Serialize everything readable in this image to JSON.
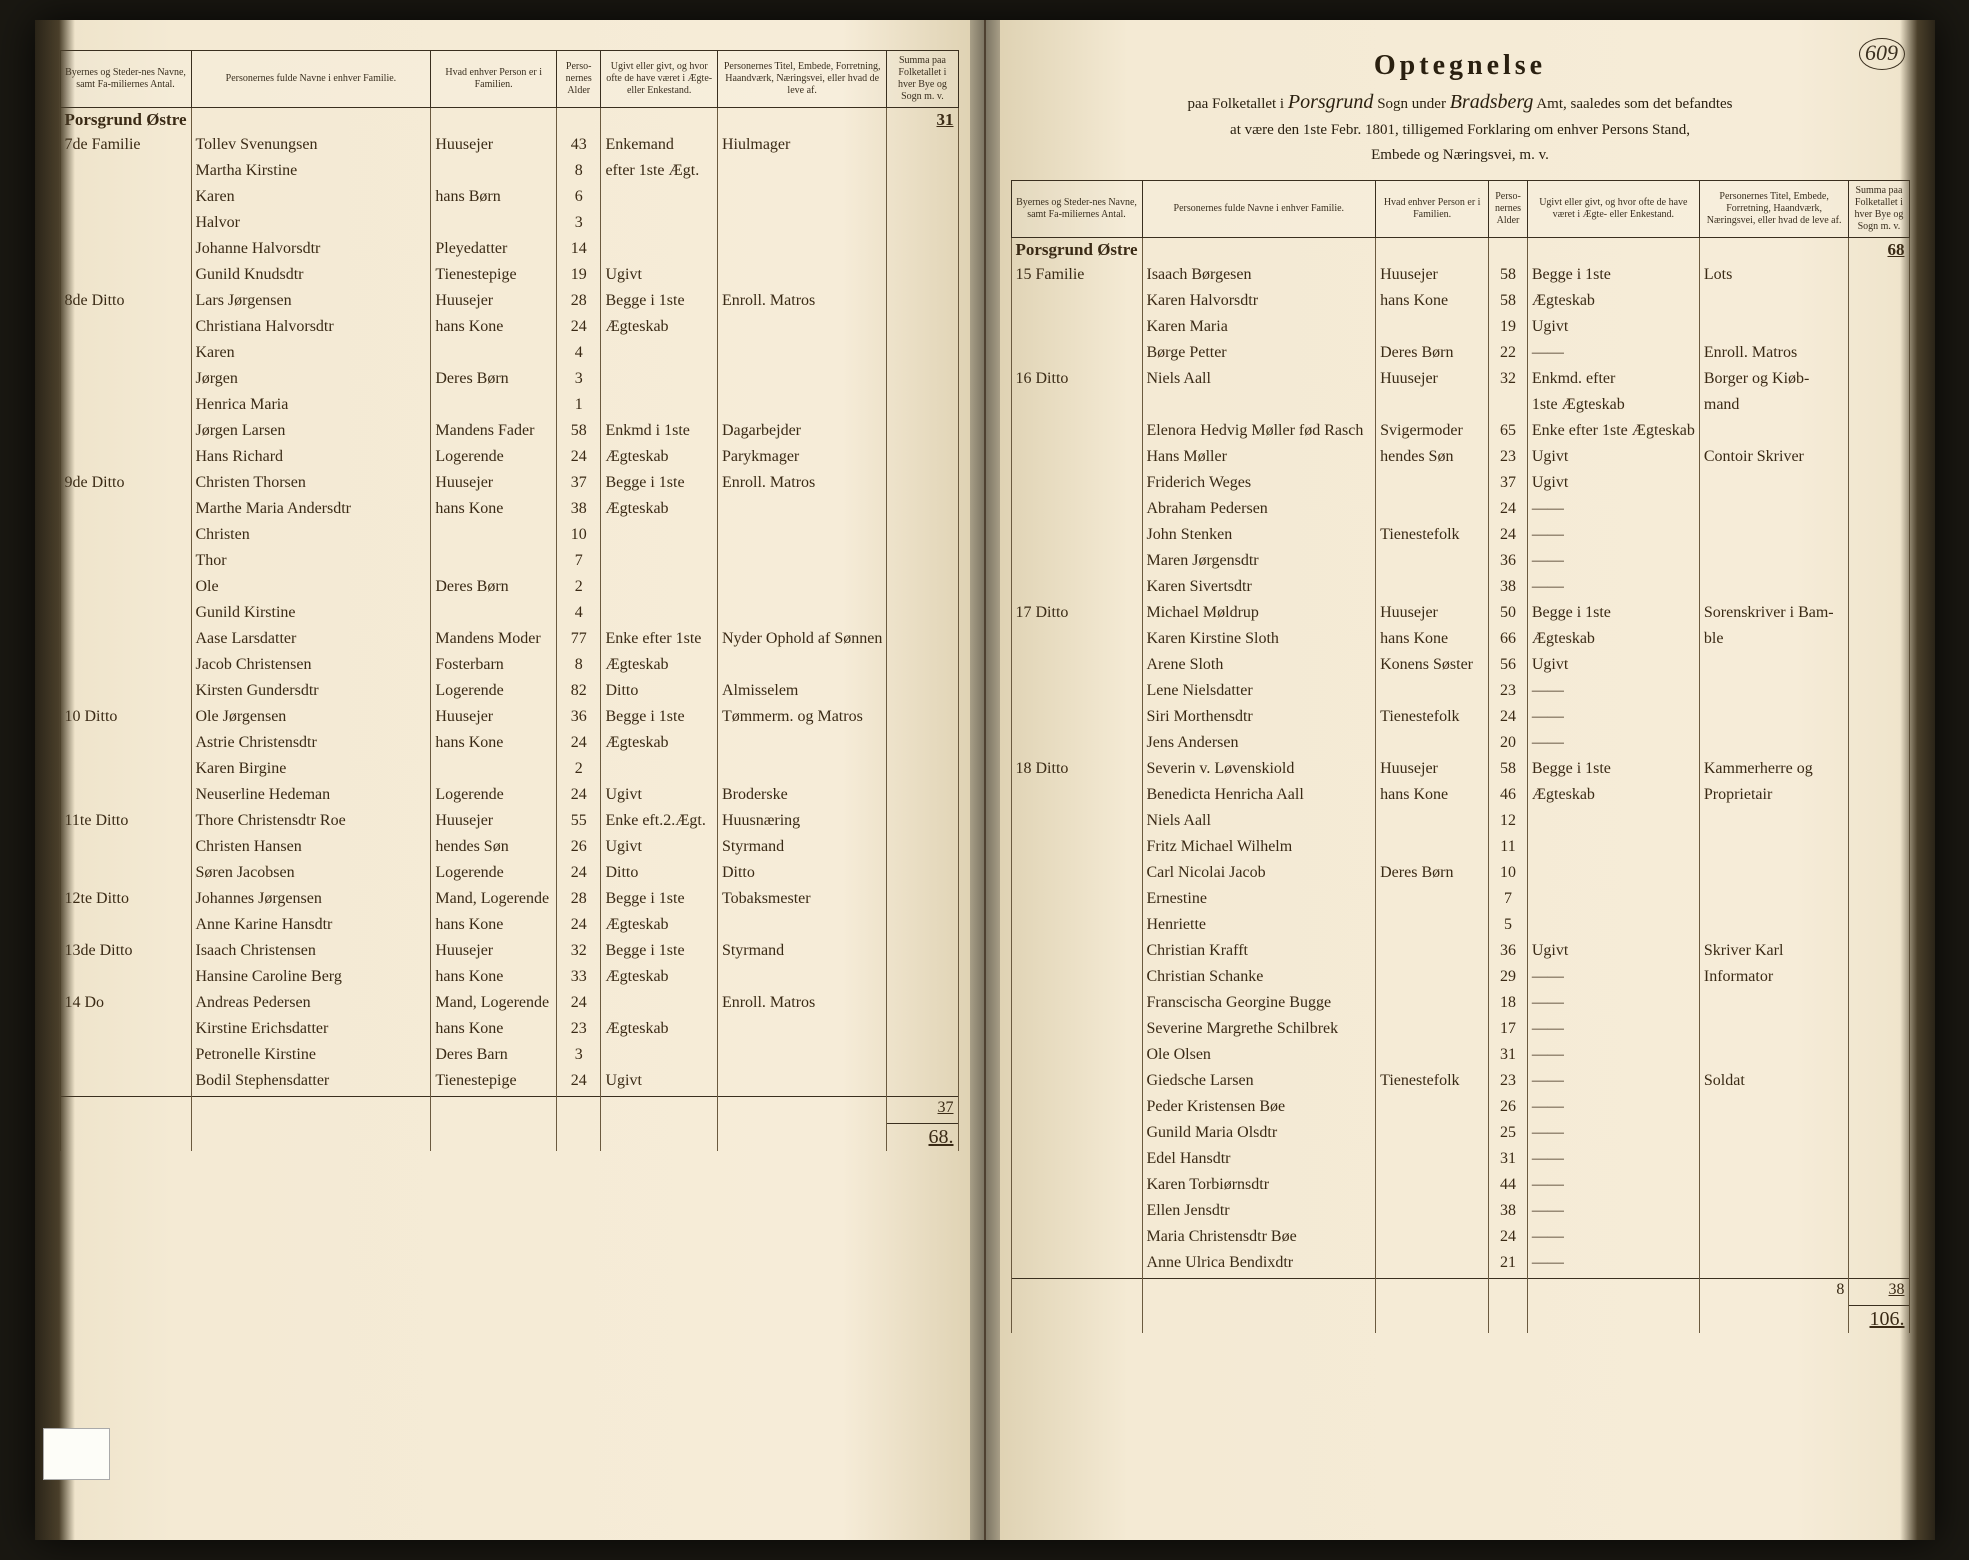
{
  "page_number": "609",
  "right_header": {
    "title": "Optegnelse",
    "line1_a": "paa Folketallet i",
    "line1_script1": "Porsgrund",
    "line1_b": "Sogn under",
    "line1_script2": "Bradsberg",
    "line1_c": "Amt, saaledes som det befandtes",
    "line2": "at være den 1ste Febr. 1801, tilligemed Forklaring om enhver Persons Stand,",
    "line3": "Embede og Næringsvei, m. v."
  },
  "columns": {
    "c1": "Byernes og Steder-nes Navne, samt Fa-miliernes Antal.",
    "c2": "Personernes fulde Navne i enhver Familie.",
    "c3": "Hvad enhver Person er i Familien.",
    "c4": "Perso-nernes Alder",
    "c5": "Ugivt eller givt, og hvor ofte de have været i Ægte- eller Enkestand.",
    "c6": "Personernes Titel, Embede, Forretning, Haandværk, Næringsvei, eller hvad de leve af.",
    "c7": "Summa paa Folketallet i hver Bye og Sogn m. v."
  },
  "left": {
    "section": "Porsgrund Østre",
    "carry": "31",
    "rows": [
      {
        "loc": "7de Familie",
        "name": "Tollev Svenungsen",
        "rel": "Huusejer",
        "age": "43",
        "mar": "Enkemand",
        "occ": "Hiulmager"
      },
      {
        "loc": "",
        "name": "Martha Kirstine",
        "rel": "",
        "age": "8",
        "mar": "efter 1ste Ægt.",
        "occ": ""
      },
      {
        "loc": "",
        "name": "Karen",
        "rel": "hans Børn",
        "age": "6",
        "mar": "",
        "occ": ""
      },
      {
        "loc": "",
        "name": "Halvor",
        "rel": "",
        "age": "3",
        "mar": "",
        "occ": ""
      },
      {
        "loc": "",
        "name": "Johanne Halvorsdtr",
        "rel": "Pleyedatter",
        "age": "14",
        "mar": "",
        "occ": ""
      },
      {
        "loc": "",
        "name": "Gunild Knudsdtr",
        "rel": "Tienestepige",
        "age": "19",
        "mar": "Ugivt",
        "occ": ""
      },
      {
        "loc": "8de Ditto",
        "name": "Lars Jørgensen",
        "rel": "Huusejer",
        "age": "28",
        "mar": "Begge i 1ste",
        "occ": "Enroll. Matros"
      },
      {
        "loc": "",
        "name": "Christiana Halvorsdtr",
        "rel": "hans Kone",
        "age": "24",
        "mar": "Ægteskab",
        "occ": ""
      },
      {
        "loc": "",
        "name": "Karen",
        "rel": "",
        "age": "4",
        "mar": "",
        "occ": ""
      },
      {
        "loc": "",
        "name": "Jørgen",
        "rel": "Deres Børn",
        "age": "3",
        "mar": "",
        "occ": ""
      },
      {
        "loc": "",
        "name": "Henrica Maria",
        "rel": "",
        "age": "1",
        "mar": "",
        "occ": ""
      },
      {
        "loc": "",
        "name": "Jørgen Larsen",
        "rel": "Mandens Fader",
        "age": "58",
        "mar": "Enkmd i 1ste",
        "occ": "Dagarbejder"
      },
      {
        "loc": "",
        "name": "Hans Richard",
        "rel": "Logerende",
        "age": "24",
        "mar": "Ægteskab",
        "occ": "Parykmager"
      },
      {
        "loc": "9de Ditto",
        "name": "Christen Thorsen",
        "rel": "Huusejer",
        "age": "37",
        "mar": "Begge i 1ste",
        "occ": "Enroll. Matros"
      },
      {
        "loc": "",
        "name": "Marthe Maria Andersdtr",
        "rel": "hans Kone",
        "age": "38",
        "mar": "Ægteskab",
        "occ": ""
      },
      {
        "loc": "",
        "name": "Christen",
        "rel": "",
        "age": "10",
        "mar": "",
        "occ": ""
      },
      {
        "loc": "",
        "name": "Thor",
        "rel": "",
        "age": "7",
        "mar": "",
        "occ": ""
      },
      {
        "loc": "",
        "name": "Ole",
        "rel": "Deres Børn",
        "age": "2",
        "mar": "",
        "occ": ""
      },
      {
        "loc": "",
        "name": "Gunild Kirstine",
        "rel": "",
        "age": "4",
        "mar": "",
        "occ": ""
      },
      {
        "loc": "",
        "name": "Aase Larsdatter",
        "rel": "Mandens Moder",
        "age": "77",
        "mar": "Enke efter 1ste",
        "occ": "Nyder Ophold af Sønnen"
      },
      {
        "loc": "",
        "name": "Jacob Christensen",
        "rel": "Fosterbarn",
        "age": "8",
        "mar": "Ægteskab",
        "occ": ""
      },
      {
        "loc": "",
        "name": "Kirsten Gundersdtr",
        "rel": "Logerende",
        "age": "82",
        "mar": "Ditto",
        "occ": "Almisselem"
      },
      {
        "loc": "10 Ditto",
        "name": "Ole Jørgensen",
        "rel": "Huusejer",
        "age": "36",
        "mar": "Begge i 1ste",
        "occ": "Tømmerm. og Matros"
      },
      {
        "loc": "",
        "name": "Astrie Christensdtr",
        "rel": "hans Kone",
        "age": "24",
        "mar": "Ægteskab",
        "occ": ""
      },
      {
        "loc": "",
        "name": "Karen Birgine",
        "rel": "",
        "age": "2",
        "mar": "",
        "occ": ""
      },
      {
        "loc": "",
        "name": "Neuserline Hedeman",
        "rel": "Logerende",
        "age": "24",
        "mar": "Ugivt",
        "occ": "Broderske"
      },
      {
        "loc": "11te Ditto",
        "name": "Thore Christensdtr Roe",
        "rel": "Huusejer",
        "age": "55",
        "mar": "Enke eft.2.Ægt.",
        "occ": "Huusnæring"
      },
      {
        "loc": "",
        "name": "Christen Hansen",
        "rel": "hendes Søn",
        "age": "26",
        "mar": "Ugivt",
        "occ": "Styrmand"
      },
      {
        "loc": "",
        "name": "Søren Jacobsen",
        "rel": "Logerende",
        "age": "24",
        "mar": "Ditto",
        "occ": "Ditto"
      },
      {
        "loc": "12te Ditto",
        "name": "Johannes Jørgensen",
        "rel": "Mand, Logerende",
        "age": "28",
        "mar": "Begge i 1ste",
        "occ": "Tobaksmester"
      },
      {
        "loc": "",
        "name": "Anne Karine Hansdtr",
        "rel": "hans Kone",
        "age": "24",
        "mar": "Ægteskab",
        "occ": ""
      },
      {
        "loc": "13de Ditto",
        "name": "Isaach Christensen",
        "rel": "Huusejer",
        "age": "32",
        "mar": "Begge i 1ste",
        "occ": "Styrmand"
      },
      {
        "loc": "",
        "name": "Hansine Caroline Berg",
        "rel": "hans Kone",
        "age": "33",
        "mar": "Ægteskab",
        "occ": ""
      },
      {
        "loc": "14 Do",
        "name": "Andreas Pedersen",
        "rel": "Mand, Logerende",
        "age": "24",
        "mar": "",
        "occ": "Enroll. Matros"
      },
      {
        "loc": "",
        "name": "Kirstine Erichsdatter",
        "rel": "hans Kone",
        "age": "23",
        "mar": "Ægteskab",
        "occ": ""
      },
      {
        "loc": "",
        "name": "Petronelle Kirstine",
        "rel": "Deres Barn",
        "age": "3",
        "mar": "",
        "occ": ""
      },
      {
        "loc": "",
        "name": "Bodil Stephensdatter",
        "rel": "Tienestepige",
        "age": "24",
        "mar": "Ugivt",
        "occ": ""
      }
    ],
    "subtotal": "37",
    "total": "68"
  },
  "right": {
    "section": "Porsgrund Østre",
    "carry": "68",
    "rows": [
      {
        "loc": "15 Familie",
        "name": "Isaach Børgesen",
        "rel": "Huusejer",
        "age": "58",
        "mar": "Begge i 1ste",
        "occ": "Lots"
      },
      {
        "loc": "",
        "name": "Karen Halvorsdtr",
        "rel": "hans Kone",
        "age": "58",
        "mar": "Ægteskab",
        "occ": ""
      },
      {
        "loc": "",
        "name": "Karen Maria",
        "rel": "",
        "age": "19",
        "mar": "Ugivt",
        "occ": ""
      },
      {
        "loc": "",
        "name": "Børge Petter",
        "rel": "Deres Børn",
        "age": "22",
        "mar": "——",
        "occ": "Enroll. Matros"
      },
      {
        "loc": "16 Ditto",
        "name": "Niels Aall",
        "rel": "Huusejer",
        "age": "32",
        "mar": "Enkmd. efter",
        "occ": "Borger og Kiøb-"
      },
      {
        "loc": "",
        "name": "",
        "rel": "",
        "age": "",
        "mar": "1ste Ægteskab",
        "occ": "mand"
      },
      {
        "loc": "",
        "name": "Elenora Hedvig Møller fød Rasch",
        "rel": "Svigermoder",
        "age": "65",
        "mar": "Enke efter 1ste Ægteskab",
        "occ": ""
      },
      {
        "loc": "",
        "name": "Hans Møller",
        "rel": "hendes Søn",
        "age": "23",
        "mar": "Ugivt",
        "occ": "Contoir Skriver"
      },
      {
        "loc": "",
        "name": "Friderich Weges",
        "rel": "",
        "age": "37",
        "mar": "Ugivt",
        "occ": ""
      },
      {
        "loc": "",
        "name": "Abraham Pedersen",
        "rel": "",
        "age": "24",
        "mar": "——",
        "occ": ""
      },
      {
        "loc": "",
        "name": "John Stenken",
        "rel": "Tienestefolk",
        "age": "24",
        "mar": "——",
        "occ": ""
      },
      {
        "loc": "",
        "name": "Maren Jørgensdtr",
        "rel": "",
        "age": "36",
        "mar": "——",
        "occ": ""
      },
      {
        "loc": "",
        "name": "Karen Sivertsdtr",
        "rel": "",
        "age": "38",
        "mar": "——",
        "occ": ""
      },
      {
        "loc": "17 Ditto",
        "name": "Michael Møldrup",
        "rel": "Huusejer",
        "age": "50",
        "mar": "Begge i 1ste",
        "occ": "Sorenskriver i Bam-"
      },
      {
        "loc": "",
        "name": "Karen Kirstine Sloth",
        "rel": "hans Kone",
        "age": "66",
        "mar": "Ægteskab",
        "occ": "ble"
      },
      {
        "loc": "",
        "name": "Arene Sloth",
        "rel": "Konens Søster",
        "age": "56",
        "mar": "Ugivt",
        "occ": ""
      },
      {
        "loc": "",
        "name": "Lene Nielsdatter",
        "rel": "",
        "age": "23",
        "mar": "——",
        "occ": ""
      },
      {
        "loc": "",
        "name": "Siri Morthensdtr",
        "rel": "Tienestefolk",
        "age": "24",
        "mar": "——",
        "occ": ""
      },
      {
        "loc": "",
        "name": "Jens Andersen",
        "rel": "",
        "age": "20",
        "mar": "——",
        "occ": ""
      },
      {
        "loc": "18 Ditto",
        "name": "Severin v. Løvenskiold",
        "rel": "Huusejer",
        "age": "58",
        "mar": "Begge i 1ste",
        "occ": "Kammerherre og"
      },
      {
        "loc": "",
        "name": "Benedicta Henricha Aall",
        "rel": "hans Kone",
        "age": "46",
        "mar": "Ægteskab",
        "occ": "Proprietair"
      },
      {
        "loc": "",
        "name": "Niels Aall",
        "rel": "",
        "age": "12",
        "mar": "",
        "occ": ""
      },
      {
        "loc": "",
        "name": "Fritz Michael Wilhelm",
        "rel": "",
        "age": "11",
        "mar": "",
        "occ": ""
      },
      {
        "loc": "",
        "name": "Carl Nicolai Jacob",
        "rel": "Deres Børn",
        "age": "10",
        "mar": "",
        "occ": ""
      },
      {
        "loc": "",
        "name": "Ernestine",
        "rel": "",
        "age": "7",
        "mar": "",
        "occ": ""
      },
      {
        "loc": "",
        "name": "Henriette",
        "rel": "",
        "age": "5",
        "mar": "",
        "occ": ""
      },
      {
        "loc": "",
        "name": "Christian Krafft",
        "rel": "",
        "age": "36",
        "mar": "Ugivt",
        "occ": "Skriver Karl"
      },
      {
        "loc": "",
        "name": "Christian Schanke",
        "rel": "",
        "age": "29",
        "mar": "——",
        "occ": "Informator"
      },
      {
        "loc": "",
        "name": "Franscischa Georgine Bugge",
        "rel": "",
        "age": "18",
        "mar": "——",
        "occ": ""
      },
      {
        "loc": "",
        "name": "Severine Margrethe Schilbrek",
        "rel": "",
        "age": "17",
        "mar": "——",
        "occ": ""
      },
      {
        "loc": "",
        "name": "Ole Olsen",
        "rel": "",
        "age": "31",
        "mar": "——",
        "occ": ""
      },
      {
        "loc": "",
        "name": "Giedsche Larsen",
        "rel": "Tienestefolk",
        "age": "23",
        "mar": "——",
        "occ": "Soldat"
      },
      {
        "loc": "",
        "name": "Peder Kristensen Bøe",
        "rel": "",
        "age": "26",
        "mar": "——",
        "occ": ""
      },
      {
        "loc": "",
        "name": "Gunild Maria Olsdtr",
        "rel": "",
        "age": "25",
        "mar": "——",
        "occ": ""
      },
      {
        "loc": "",
        "name": "Edel Hansdtr",
        "rel": "",
        "age": "31",
        "mar": "——",
        "occ": ""
      },
      {
        "loc": "",
        "name": "Karen Torbiørnsdtr",
        "rel": "",
        "age": "44",
        "mar": "——",
        "occ": ""
      },
      {
        "loc": "",
        "name": "Ellen Jensdtr",
        "rel": "",
        "age": "38",
        "mar": "——",
        "occ": ""
      },
      {
        "loc": "",
        "name": "Maria Christensdtr Bøe",
        "rel": "",
        "age": "24",
        "mar": "——",
        "occ": ""
      },
      {
        "loc": "",
        "name": "Anne Ulrica Bendixdtr",
        "rel": "",
        "age": "21",
        "mar": "——",
        "occ": ""
      }
    ],
    "subtotal": "38",
    "side_note": "8",
    "total": "106"
  }
}
